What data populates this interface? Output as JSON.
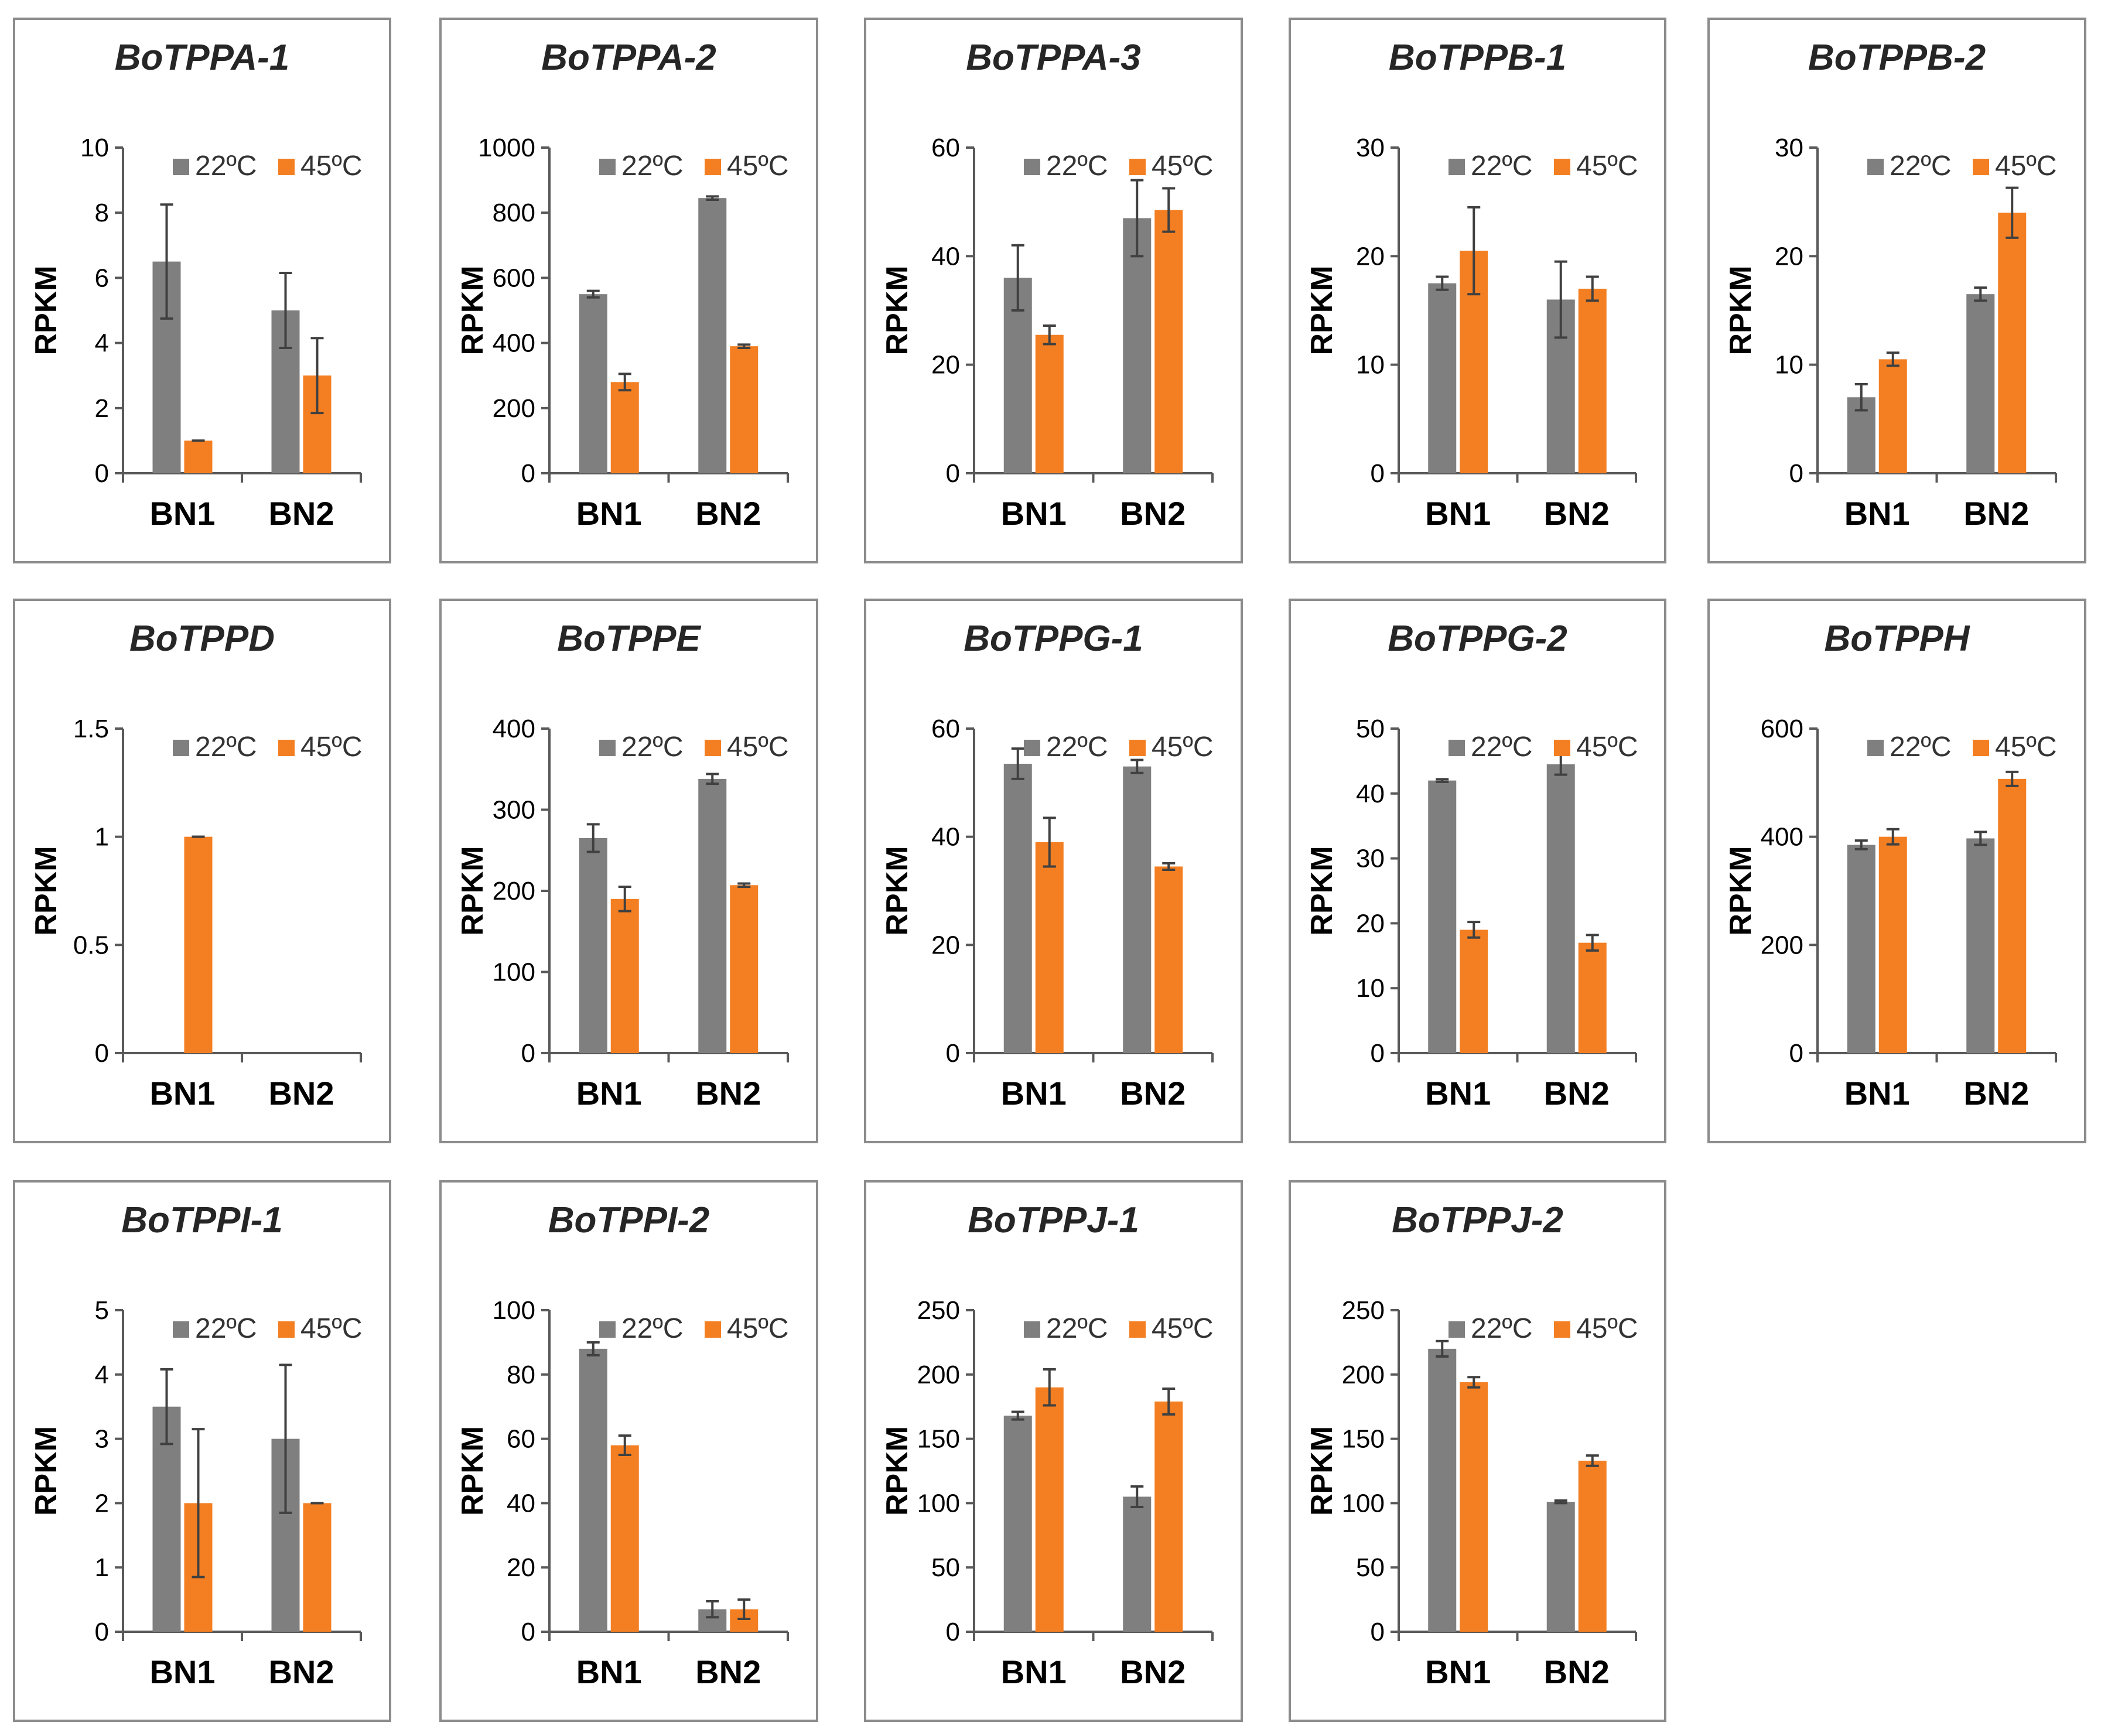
{
  "colors": {
    "series_22": "#7f7f7f",
    "series_45": "#f47f22",
    "frame": "#8c8c8c"
  },
  "chart_data": [
    {
      "type": "bar",
      "title": "BoTPPA-1",
      "ylabel": "RPKM",
      "ylim": [
        0,
        10
      ],
      "yticks": [
        "0",
        "2",
        "4",
        "6",
        "8",
        "10"
      ],
      "yvals": [
        0,
        2,
        4,
        6,
        8,
        10
      ],
      "categories": [
        "BN1",
        "BN2"
      ],
      "series": [
        {
          "name": "22ºC",
          "values": [
            6.5,
            5.0
          ],
          "errors": [
            1.75,
            1.15
          ]
        },
        {
          "name": "45ºC",
          "values": [
            1.0,
            3.0
          ],
          "errors": [
            0.0,
            1.15
          ]
        }
      ]
    },
    {
      "type": "bar",
      "title": "BoTPPA-2",
      "ylabel": "RPKM",
      "ylim": [
        0,
        1000
      ],
      "yticks": [
        "0",
        "200",
        "400",
        "600",
        "800",
        "1000"
      ],
      "yvals": [
        0,
        200,
        400,
        600,
        800,
        1000
      ],
      "categories": [
        "BN1",
        "BN2"
      ],
      "series": [
        {
          "name": "22ºC",
          "values": [
            550,
            845
          ],
          "errors": [
            10,
            5
          ]
        },
        {
          "name": "45ºC",
          "values": [
            280,
            390
          ],
          "errors": [
            25,
            5
          ]
        }
      ]
    },
    {
      "type": "bar",
      "title": "BoTPPA-3",
      "ylabel": "RPKM",
      "ylim": [
        0,
        60
      ],
      "yticks": [
        "0",
        "20",
        "40",
        "60"
      ],
      "yvals": [
        0,
        20,
        40,
        60
      ],
      "categories": [
        "BN1",
        "BN2"
      ],
      "series": [
        {
          "name": "22ºC",
          "values": [
            36,
            47
          ],
          "errors": [
            6,
            7
          ]
        },
        {
          "name": "45ºC",
          "values": [
            25.5,
            48.5
          ],
          "errors": [
            1.7,
            4
          ]
        }
      ]
    },
    {
      "type": "bar",
      "title": "BoTPPB-1",
      "ylabel": "RPKM",
      "ylim": [
        0,
        30
      ],
      "yticks": [
        "0",
        "10",
        "20",
        "30"
      ],
      "yvals": [
        0,
        10,
        20,
        30
      ],
      "categories": [
        "BN1",
        "BN2"
      ],
      "series": [
        {
          "name": "22ºC",
          "values": [
            17.5,
            16
          ],
          "errors": [
            0.6,
            3.5
          ]
        },
        {
          "name": "45ºC",
          "values": [
            20.5,
            17
          ],
          "errors": [
            4,
            1.1
          ]
        }
      ]
    },
    {
      "type": "bar",
      "title": "BoTPPB-2",
      "ylabel": "RPKM",
      "ylim": [
        0,
        30
      ],
      "yticks": [
        "0",
        "10",
        "20",
        "30"
      ],
      "yvals": [
        0,
        10,
        20,
        30
      ],
      "categories": [
        "BN1",
        "BN2"
      ],
      "series": [
        {
          "name": "22ºC",
          "values": [
            7,
            16.5
          ],
          "errors": [
            1.2,
            0.6
          ]
        },
        {
          "name": "45ºC",
          "values": [
            10.5,
            24
          ],
          "errors": [
            0.6,
            2.3
          ]
        }
      ]
    },
    {
      "type": "bar",
      "title": "BoTPPD",
      "ylabel": "RPKM",
      "ylim": [
        0,
        1.5
      ],
      "yticks": [
        "0",
        "0.5",
        "1",
        "1.5"
      ],
      "yvals": [
        0,
        0.5,
        1,
        1.5
      ],
      "categories": [
        "BN1",
        "BN2"
      ],
      "series": [
        {
          "name": "22ºC",
          "values": [
            0,
            0
          ],
          "errors": [
            0,
            0
          ]
        },
        {
          "name": "45ºC",
          "values": [
            1.0,
            0
          ],
          "errors": [
            0,
            0
          ]
        }
      ]
    },
    {
      "type": "bar",
      "title": "BoTPPE",
      "ylabel": "RPKM",
      "ylim": [
        0,
        400
      ],
      "yticks": [
        "0",
        "100",
        "200",
        "300",
        "400"
      ],
      "yvals": [
        0,
        100,
        200,
        300,
        400
      ],
      "categories": [
        "BN1",
        "BN2"
      ],
      "series": [
        {
          "name": "22ºC",
          "values": [
            265,
            338
          ],
          "errors": [
            17,
            6
          ]
        },
        {
          "name": "45ºC",
          "values": [
            190,
            207
          ],
          "errors": [
            15,
            2
          ]
        }
      ]
    },
    {
      "type": "bar",
      "title": "BoTPPG-1",
      "ylabel": "RPKM",
      "ylim": [
        0,
        60
      ],
      "yticks": [
        "0",
        "20",
        "40",
        "60"
      ],
      "yvals": [
        0,
        20,
        40,
        60
      ],
      "categories": [
        "BN1",
        "BN2"
      ],
      "series": [
        {
          "name": "22ºC",
          "values": [
            53.5,
            53
          ],
          "errors": [
            2.8,
            1.2
          ]
        },
        {
          "name": "45ºC",
          "values": [
            39,
            34.5
          ],
          "errors": [
            4.5,
            0.6
          ]
        }
      ]
    },
    {
      "type": "bar",
      "title": "BoTPPG-2",
      "ylabel": "RPKM",
      "ylim": [
        0,
        50
      ],
      "yticks": [
        "0",
        "10",
        "20",
        "30",
        "40",
        "50"
      ],
      "yvals": [
        0,
        10,
        20,
        30,
        40,
        50
      ],
      "categories": [
        "BN1",
        "BN2"
      ],
      "series": [
        {
          "name": "22ºC",
          "values": [
            42,
            44.5
          ],
          "errors": [
            0.2,
            1.6
          ]
        },
        {
          "name": "45ºC",
          "values": [
            19,
            17
          ],
          "errors": [
            1.2,
            1.2
          ]
        }
      ]
    },
    {
      "type": "bar",
      "title": "BoTPPH",
      "ylabel": "RPKM",
      "ylim": [
        0,
        600
      ],
      "yticks": [
        "0",
        "200",
        "400",
        "600"
      ],
      "yvals": [
        0,
        200,
        400,
        600
      ],
      "categories": [
        "BN1",
        "BN2"
      ],
      "series": [
        {
          "name": "22ºC",
          "values": [
            385,
            397
          ],
          "errors": [
            8,
            12
          ]
        },
        {
          "name": "45ºC",
          "values": [
            400,
            507
          ],
          "errors": [
            14,
            13
          ]
        }
      ]
    },
    {
      "type": "bar",
      "title": "BoTPPI-1",
      "ylabel": "RPKM",
      "ylim": [
        0,
        5
      ],
      "yticks": [
        "0",
        "1",
        "2",
        "3",
        "4",
        "5"
      ],
      "yvals": [
        0,
        1,
        2,
        3,
        4,
        5
      ],
      "categories": [
        "BN1",
        "BN2"
      ],
      "series": [
        {
          "name": "22ºC",
          "values": [
            3.5,
            3.0
          ],
          "errors": [
            0.58,
            1.15
          ]
        },
        {
          "name": "45ºC",
          "values": [
            2.0,
            2.0
          ],
          "errors": [
            1.15,
            0.0
          ]
        }
      ]
    },
    {
      "type": "bar",
      "title": "BoTPPI-2",
      "ylabel": "RPKM",
      "ylim": [
        0,
        100
      ],
      "yticks": [
        "0",
        "20",
        "40",
        "60",
        "80",
        "100"
      ],
      "yvals": [
        0,
        20,
        40,
        60,
        80,
        100
      ],
      "categories": [
        "BN1",
        "BN2"
      ],
      "series": [
        {
          "name": "22ºC",
          "values": [
            88,
            7
          ],
          "errors": [
            2,
            2.5
          ]
        },
        {
          "name": "45ºC",
          "values": [
            58,
            7
          ],
          "errors": [
            3,
            3
          ]
        }
      ]
    },
    {
      "type": "bar",
      "title": "BoTPPJ-1",
      "ylabel": "RPKM",
      "ylim": [
        0,
        250
      ],
      "yticks": [
        "0",
        "50",
        "100",
        "150",
        "200",
        "250"
      ],
      "yvals": [
        0,
        50,
        100,
        150,
        200,
        250
      ],
      "categories": [
        "BN1",
        "BN2"
      ],
      "series": [
        {
          "name": "22ºC",
          "values": [
            168,
            105
          ],
          "errors": [
            3,
            8
          ]
        },
        {
          "name": "45ºC",
          "values": [
            190,
            179
          ],
          "errors": [
            14,
            10
          ]
        }
      ]
    },
    {
      "type": "bar",
      "title": "BoTPPJ-2",
      "ylabel": "RPKM",
      "ylim": [
        0,
        250
      ],
      "yticks": [
        "0",
        "50",
        "100",
        "150",
        "200",
        "250"
      ],
      "yvals": [
        0,
        50,
        100,
        150,
        200,
        250
      ],
      "categories": [
        "BN1",
        "BN2"
      ],
      "series": [
        {
          "name": "22ºC",
          "values": [
            220,
            101
          ],
          "errors": [
            6,
            1
          ]
        },
        {
          "name": "45ºC",
          "values": [
            194,
            133
          ],
          "errors": [
            4,
            4
          ]
        }
      ]
    }
  ]
}
